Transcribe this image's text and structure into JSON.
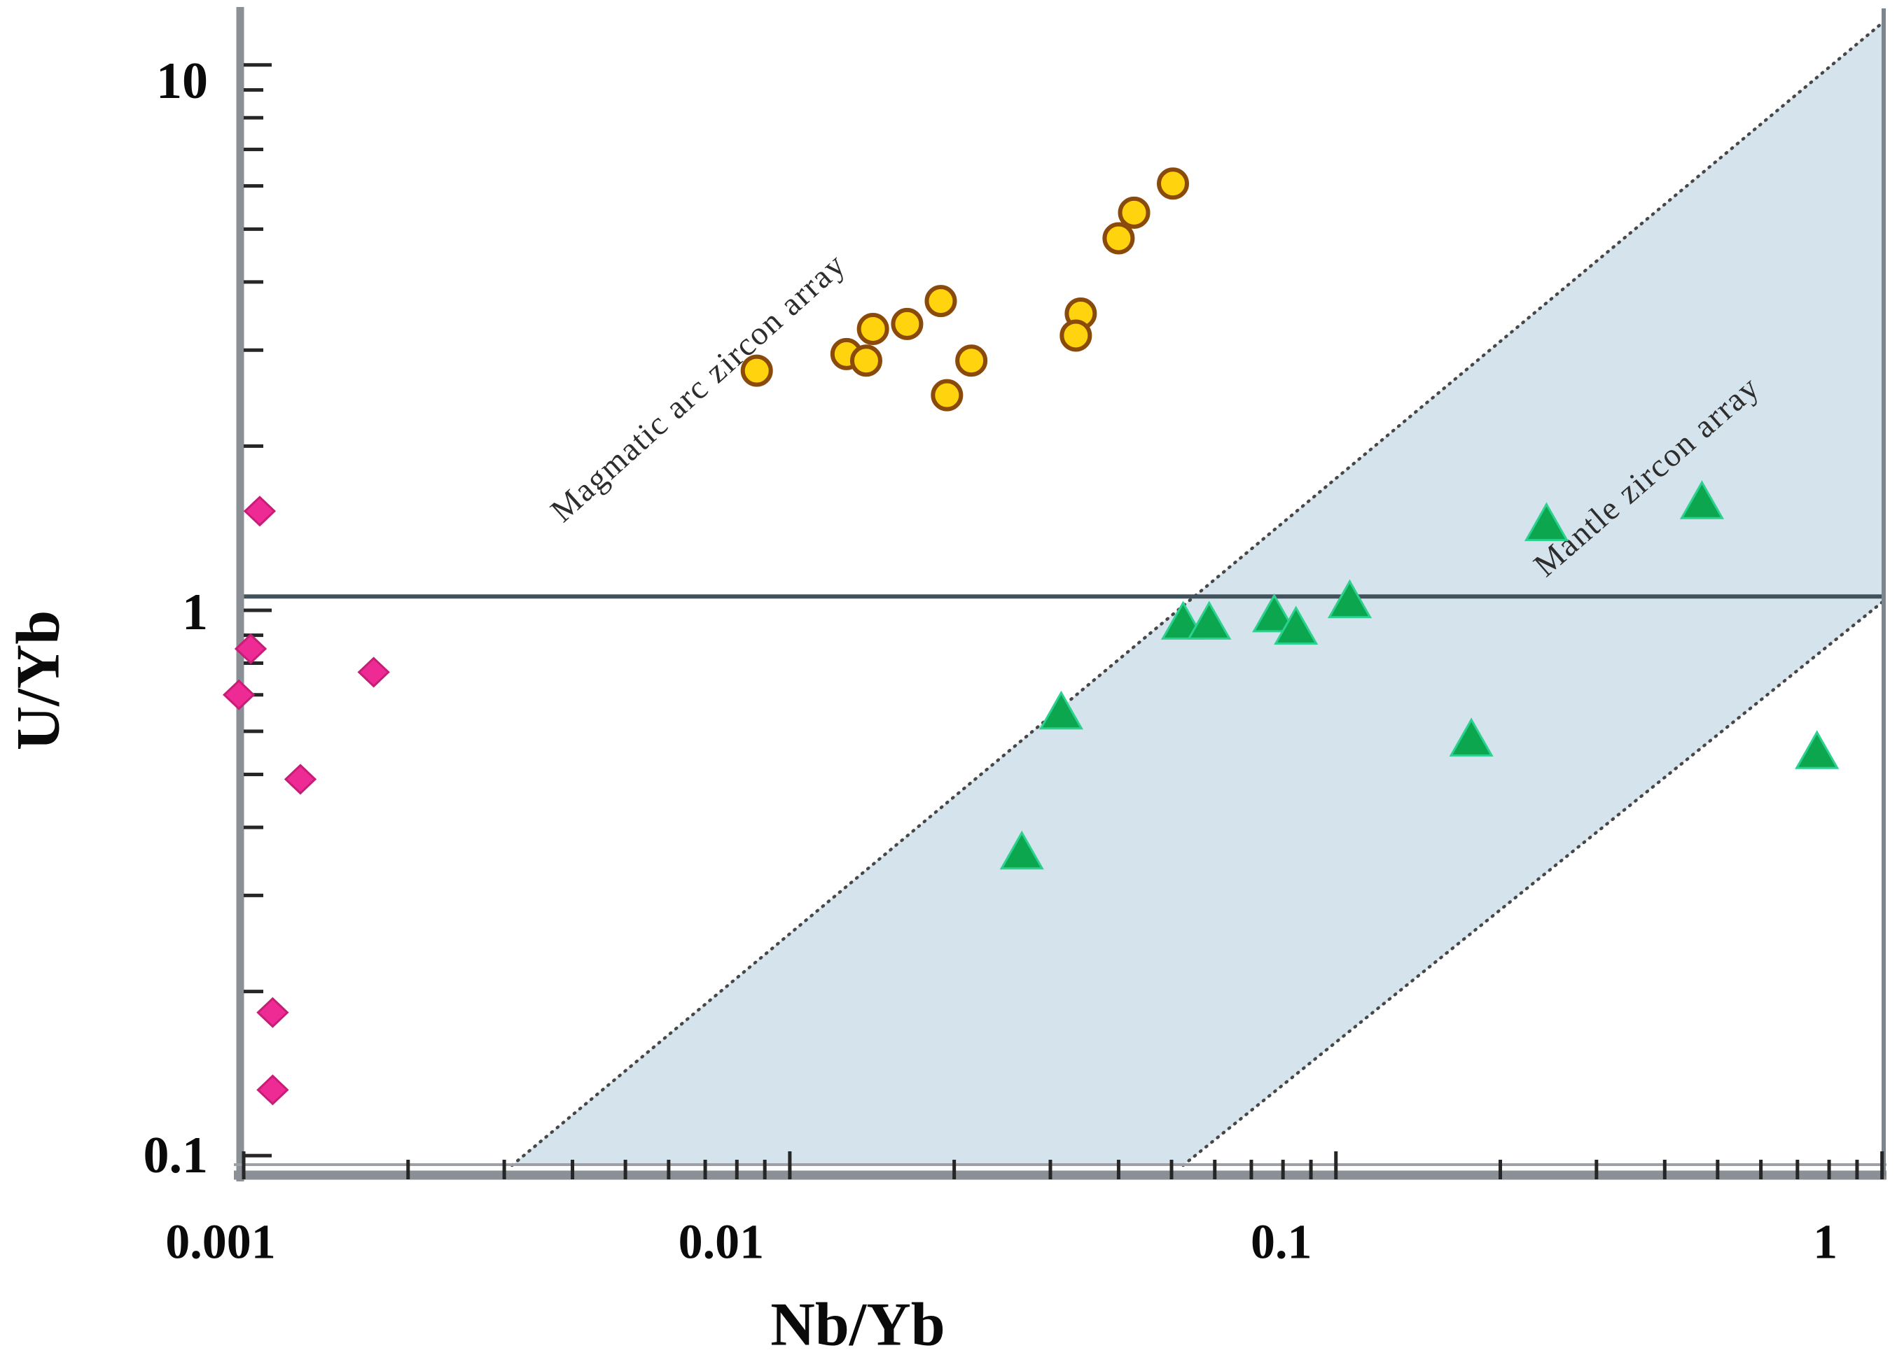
{
  "chart_data": {
    "type": "scatter",
    "title": "",
    "xlabel": "Nb/Yb",
    "ylabel": "U/Yb",
    "x_scale": "log",
    "y_scale": "log",
    "xlim": [
      0.001,
      1.007
    ],
    "ylim": [
      0.096,
      12.4
    ],
    "grid": false,
    "x_ticks": {
      "values": [
        0.001,
        0.01,
        0.1,
        1
      ],
      "labels": [
        "0.001",
        "0.01",
        "0.1",
        "1"
      ]
    },
    "y_ticks": {
      "values": [
        0.1,
        1,
        10
      ],
      "labels": [
        "0.1",
        "1",
        "10"
      ]
    },
    "reference_line": {
      "axis": "y",
      "value": 1.06,
      "color": "#42525c"
    },
    "mantle_band": {
      "fill": "#d5e4ec",
      "edge_color": "#474747",
      "edge_style": "dotted",
      "upper_edge": [
        [
          0.0031,
          0.096
        ],
        [
          1.007,
          12.0
        ]
      ],
      "lower_edge": [
        [
          0.0525,
          0.096
        ],
        [
          1.007,
          1.04
        ]
      ]
    },
    "annotations": [
      {
        "text": "Magmatic arc zircon array",
        "x": 0.0068,
        "y": 2.56,
        "angle_deg": -42
      },
      {
        "text": "Mantle zircon array",
        "x": 0.371,
        "y": 1.76,
        "angle_deg": -41
      }
    ],
    "series": [
      {
        "name": "yellow-circle-zircons",
        "marker": "circle",
        "fill": "#ffd30d",
        "stroke": "#8a4a0b",
        "points": [
          [
            0.0087,
            2.75
          ],
          [
            0.0127,
            2.95
          ],
          [
            0.0138,
            2.87
          ],
          [
            0.0142,
            3.28
          ],
          [
            0.0164,
            3.35
          ],
          [
            0.0189,
            3.69
          ],
          [
            0.0215,
            2.87
          ],
          [
            0.0194,
            2.48
          ],
          [
            0.0341,
            3.5
          ],
          [
            0.0334,
            3.19
          ],
          [
            0.04,
            4.81
          ],
          [
            0.0427,
            5.36
          ],
          [
            0.0503,
            6.06
          ]
        ]
      },
      {
        "name": "pink-diamond-zircons",
        "marker": "diamond",
        "fill": "#ee2a94",
        "stroke": "#c81d77",
        "points": [
          [
            0.00107,
            1.52
          ],
          [
            0.00103,
            0.85
          ],
          [
            0.00098,
            0.7
          ],
          [
            0.00173,
            0.77
          ],
          [
            0.00127,
            0.49
          ],
          [
            0.00113,
            0.183
          ],
          [
            0.00113,
            0.132
          ]
        ]
      },
      {
        "name": "green-triangle-zircons",
        "marker": "triangle",
        "fill": "#0ba64e",
        "stroke": "#2bd18e",
        "points": [
          [
            0.0266,
            0.36
          ],
          [
            0.0314,
            0.65
          ],
          [
            0.0525,
            0.95
          ],
          [
            0.0586,
            0.95
          ],
          [
            0.0771,
            0.98
          ],
          [
            0.0845,
            0.93
          ],
          [
            0.106,
            1.04
          ],
          [
            0.177,
            0.58
          ],
          [
            0.243,
            1.44
          ],
          [
            0.468,
            1.58
          ],
          [
            0.76,
            0.55
          ]
        ]
      }
    ],
    "axis_color": "#8a9096",
    "axis_edge_color": "#9ba1a6",
    "tick_color": "#262626",
    "tick_label_color": "#0a0a0a",
    "annotation_color": "#2d2d2d"
  }
}
